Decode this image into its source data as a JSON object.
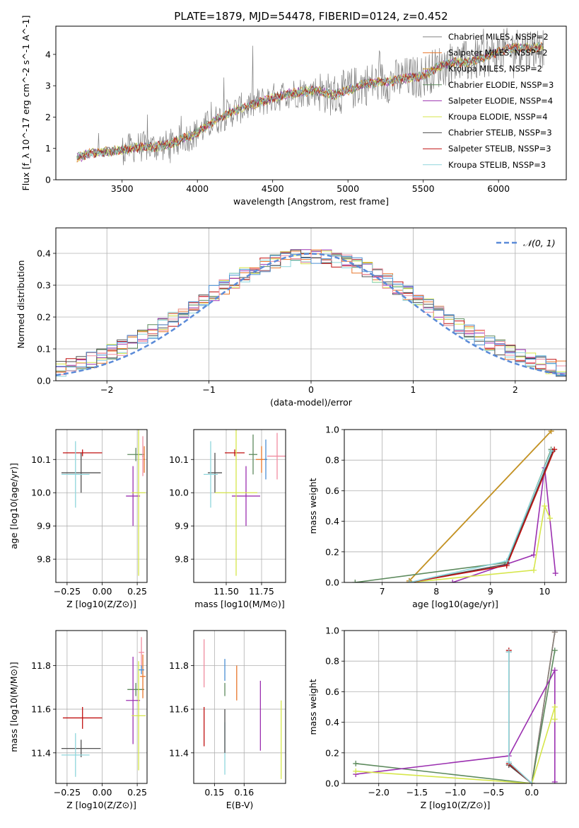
{
  "figure": {
    "title": "PLATE=1879, MJD=54478, FIBERID=0124, z=0.452"
  },
  "chart_data": [
    {
      "id": "spectrum",
      "type": "line",
      "xlabel": "wavelength [Angstrom, rest frame]",
      "ylabel": "Flux [f_λ 10^-17 erg cm^-2 s^-1 A^-1]",
      "xlim": [
        3060,
        6450
      ],
      "ylim": [
        0,
        4.9
      ],
      "xticks": [
        3500,
        4000,
        4500,
        5000,
        5500,
        6000
      ],
      "yticks": [
        0,
        1,
        2,
        3,
        4
      ],
      "grid": false,
      "legend_position": "upper-right",
      "legend_entries": [
        "Chabrier MILES, N_SSP=2",
        "Salpeter MILES, N_SSP=2",
        "Kroupa MILES, N_SSP=2",
        "Chabrier ELODIE, N_SSP=3",
        "Salpeter ELODIE, N_SSP=4",
        "Kroupa ELODIE, N_SSP=4",
        "Chabrier STELIB, N_SSP=3",
        "Salpeter STELIB, N_SSP=3",
        "Kroupa STELIB, N_SSP=3"
      ],
      "legend_colors": [
        "#808080",
        "#e8762b",
        "#c8961e",
        "#5d8a5d",
        "#9b30b0",
        "#d6e64a",
        "#505050",
        "#c01010",
        "#8fd6dc"
      ],
      "data_model": {
        "x": [
          3200,
          3300,
          3400,
          3500,
          3600,
          3700,
          3800,
          3900,
          4000,
          4100,
          4200,
          4300,
          4400,
          4500,
          4600,
          4700,
          4800,
          4900,
          5000,
          5100,
          5200,
          5300,
          5400,
          5500,
          5600,
          5700,
          5800,
          5900,
          6000,
          6100,
          6200,
          6300
        ],
        "y": [
          0.7,
          0.85,
          0.9,
          0.95,
          1.05,
          1.05,
          1.1,
          1.3,
          1.5,
          1.85,
          2.1,
          2.3,
          2.45,
          2.6,
          2.75,
          2.8,
          2.85,
          2.7,
          2.85,
          3.05,
          3.1,
          3.15,
          3.25,
          3.3,
          3.6,
          3.75,
          3.75,
          3.9,
          4.1,
          4.2,
          4.2,
          4.25
        ]
      }
    },
    {
      "id": "residuals",
      "type": "line",
      "xlabel": "(data-model)/error",
      "ylabel": "Normed distribution",
      "xlim": [
        -2.5,
        2.5
      ],
      "ylim": [
        0,
        0.48
      ],
      "xticks": [
        -2,
        -1,
        0,
        1,
        2
      ],
      "yticks": [
        0.0,
        0.1,
        0.2,
        0.3,
        0.4
      ],
      "grid": true,
      "legend_position": "upper-right",
      "legend_entries": [
        "𝒩(0, 1)"
      ],
      "gaussian_mean": 0,
      "gaussian_sigma": 1,
      "bin_width": 0.1
    },
    {
      "id": "age-vs-Z",
      "type": "scatter",
      "xlabel": "Z [log10(Z/Z⊙)]",
      "ylabel": "age  [log10(age/yr)]",
      "xlim": [
        -0.33,
        0.32
      ],
      "ylim": [
        9.73,
        10.19
      ],
      "xticks": [
        -0.25,
        0.0,
        0.25
      ],
      "yticks": [
        9.8,
        9.9,
        10.0,
        10.1
      ],
      "grid": true,
      "points": [
        {
          "color": "#c01010",
          "x": -0.14,
          "xe": 0.14,
          "y": 10.12,
          "ye": 0.01
        },
        {
          "color": "#505050",
          "x": -0.15,
          "xe": 0.14,
          "y": 10.06,
          "ye": 0.06
        },
        {
          "color": "#8fd6dc",
          "x": -0.19,
          "xe": 0.1,
          "y": 10.055,
          "ye": 0.1
        },
        {
          "color": "#5d8a5d",
          "x": 0.24,
          "xe": 0.06,
          "y": 10.115,
          "ye": 0.02
        },
        {
          "color": "#e8762b",
          "x": 0.3,
          "xe": 0.005,
          "y": 10.1,
          "ye": 0.04
        },
        {
          "color": "#f08ca0",
          "x": 0.29,
          "xe": 0.005,
          "y": 10.11,
          "ye": 0.06
        },
        {
          "color": "#9b30b0",
          "x": 0.22,
          "xe": 0.05,
          "y": 9.99,
          "ye": 0.09
        },
        {
          "color": "#d6e64a",
          "x": 0.26,
          "xe": 0.05,
          "y": 10.0,
          "ye": 0.25
        }
      ]
    },
    {
      "id": "age-vs-mass",
      "type": "scatter",
      "xlabel": "mass [log10(M/M⊙)]",
      "ylabel": "",
      "xlim": [
        11.27,
        11.92
      ],
      "ylim": [
        9.73,
        10.19
      ],
      "xticks": [
        11.5,
        11.75
      ],
      "yticks": [
        9.8,
        9.9,
        10.0,
        10.1
      ],
      "grid": true,
      "points": [
        {
          "color": "#c01010",
          "x": 11.56,
          "xe": 0.07,
          "y": 10.12,
          "ye": 0.01
        },
        {
          "color": "#505050",
          "x": 11.42,
          "xe": 0.05,
          "y": 10.06,
          "ye": 0.06
        },
        {
          "color": "#8fd6dc",
          "x": 11.39,
          "xe": 0.05,
          "y": 10.055,
          "ye": 0.1
        },
        {
          "color": "#5d8a5d",
          "x": 11.69,
          "xe": 0.03,
          "y": 10.115,
          "ye": 0.06
        },
        {
          "color": "#e8762b",
          "x": 11.75,
          "xe": 0.04,
          "y": 10.1,
          "ye": 0.04
        },
        {
          "color": "#f08ca0",
          "x": 11.86,
          "xe": 0.07,
          "y": 10.11,
          "ye": 0.07
        },
        {
          "color": "#9b30b0",
          "x": 11.64,
          "xe": 0.1,
          "y": 9.99,
          "ye": 0.09
        },
        {
          "color": "#d6e64a",
          "x": 11.57,
          "xe": 0.15,
          "y": 10.0,
          "ye": 0.25
        },
        {
          "color": "#4a8fd4",
          "x": 11.78,
          "xe": 0.01,
          "y": 10.1,
          "ye": 0.06
        }
      ]
    },
    {
      "id": "mass-weight-vs-age",
      "type": "line",
      "xlabel": "age  [log10(age/yr)]",
      "ylabel": "mass weight",
      "xlim": [
        6.3,
        10.4
      ],
      "ylim": [
        0,
        1.0
      ],
      "xticks": [
        7,
        8,
        9,
        10
      ],
      "yticks": [
        0.0,
        0.2,
        0.4,
        0.6,
        0.8,
        1.0
      ],
      "grid": true,
      "series": [
        {
          "color": "#e8762b",
          "x": [
            7.5,
            10.12
          ],
          "y": [
            0.01,
            0.99
          ]
        },
        {
          "color": "#808080",
          "x": [
            7.5,
            10.12
          ],
          "y": [
            0.01,
            0.99
          ]
        },
        {
          "color": "#c8961e",
          "x": [
            7.5,
            10.12
          ],
          "y": [
            0.01,
            0.99
          ]
        },
        {
          "color": "#5d8a5d",
          "x": [
            6.5,
            9.3,
            10.12
          ],
          "y": [
            0.0,
            0.13,
            0.87
          ]
        },
        {
          "color": "#9b30b0",
          "x": [
            8.3,
            9.8,
            10.0,
            10.2
          ],
          "y": [
            0.0,
            0.18,
            0.75,
            0.06
          ]
        },
        {
          "color": "#d6e64a",
          "x": [
            7.5,
            9.8,
            10.0,
            10.1
          ],
          "y": [
            0.0,
            0.08,
            0.5,
            0.42
          ]
        },
        {
          "color": "#505050",
          "x": [
            7.5,
            9.3,
            10.15
          ],
          "y": [
            0.0,
            0.12,
            0.86
          ]
        },
        {
          "color": "#c01010",
          "x": [
            7.5,
            9.3,
            10.18
          ],
          "y": [
            0.0,
            0.11,
            0.87
          ]
        },
        {
          "color": "#8fd6dc",
          "x": [
            7.5,
            9.3,
            10.12
          ],
          "y": [
            0.0,
            0.14,
            0.86
          ]
        }
      ]
    },
    {
      "id": "mass-vs-Z",
      "type": "scatter",
      "xlabel": "Z [log10(Z/Z⊙)]",
      "ylabel": "mass [log10(M/M⊙)]",
      "xlim": [
        -0.33,
        0.32
      ],
      "ylim": [
        11.26,
        11.96
      ],
      "xticks": [
        -0.25,
        0.0,
        0.25
      ],
      "yticks": [
        11.4,
        11.6,
        11.8
      ],
      "grid": true,
      "points": [
        {
          "color": "#c01010",
          "x": -0.14,
          "xe": 0.14,
          "y": 11.56,
          "ye": 0.05
        },
        {
          "color": "#505050",
          "x": -0.15,
          "xe": 0.14,
          "y": 11.42,
          "ye": 0.04
        },
        {
          "color": "#8fd6dc",
          "x": -0.19,
          "xe": 0.1,
          "y": 11.39,
          "ye": 0.1
        },
        {
          "color": "#5d8a5d",
          "x": 0.24,
          "xe": 0.06,
          "y": 11.69,
          "ye": 0.03
        },
        {
          "color": "#e8762b",
          "x": 0.29,
          "xe": 0.02,
          "y": 11.75,
          "ye": 0.1
        },
        {
          "color": "#f08ca0",
          "x": 0.28,
          "xe": 0.02,
          "y": 11.86,
          "ye": 0.07
        },
        {
          "color": "#9b30b0",
          "x": 0.22,
          "xe": 0.05,
          "y": 11.64,
          "ye": 0.2
        },
        {
          "color": "#d6e64a",
          "x": 0.26,
          "xe": 0.05,
          "y": 11.57,
          "ye": 0.25
        },
        {
          "color": "#4a8fd4",
          "x": 0.28,
          "xe": 0.02,
          "y": 11.78,
          "ye": 0.02
        }
      ]
    },
    {
      "id": "mass-vs-ebv",
      "type": "scatter",
      "xlabel": "E(B-V)",
      "ylabel": "",
      "xlim": [
        0.143,
        0.174
      ],
      "ylim": [
        11.26,
        11.96
      ],
      "xticks": [
        0.15,
        0.16
      ],
      "yticks": [
        11.4,
        11.6,
        11.8
      ],
      "grid": true,
      "points": [
        {
          "color": "#f08ca0",
          "x": 0.1465,
          "y": 11.81,
          "ye": 0.11
        },
        {
          "color": "#c01010",
          "x": 0.1465,
          "y": 11.52,
          "ye": 0.09
        },
        {
          "color": "#5d8a5d",
          "x": 0.1535,
          "y": 11.69,
          "ye": 0.03
        },
        {
          "color": "#4a8fd4",
          "x": 0.1535,
          "y": 11.78,
          "ye": 0.05
        },
        {
          "color": "#8fd6dc",
          "x": 0.1535,
          "y": 11.42,
          "ye": 0.12
        },
        {
          "color": "#505050",
          "x": 0.1535,
          "y": 11.5,
          "ye": 0.1
        },
        {
          "color": "#e8762b",
          "x": 0.1575,
          "y": 11.72,
          "ye": 0.08
        },
        {
          "color": "#9b30b0",
          "x": 0.1655,
          "y": 11.57,
          "ye": 0.16
        },
        {
          "color": "#d6e64a",
          "x": 0.1725,
          "y": 11.46,
          "ye": 0.18
        }
      ]
    },
    {
      "id": "mass-weight-vs-Z",
      "type": "line",
      "xlabel": "Z [log10(Z/Z⊙)]",
      "ylabel": "mass weight",
      "xlim": [
        -2.45,
        0.45
      ],
      "ylim": [
        0,
        1.0
      ],
      "xticks": [
        -2.0,
        -1.5,
        -1.0,
        -0.5,
        0.0
      ],
      "xticklabels": [
        "−2.0",
        "−1.5",
        "−1.0",
        "−0.5",
        "0.0"
      ],
      "yticks": [
        0.0,
        0.2,
        0.4,
        0.6,
        0.8,
        1.0
      ],
      "grid": true,
      "series": [
        {
          "color": "#e8762b",
          "x": [
            0.0,
            0.3
          ],
          "y": [
            0.0,
            0.99
          ]
        },
        {
          "color": "#808080",
          "x": [
            0.0,
            0.3
          ],
          "y": [
            0.0,
            0.99
          ]
        },
        {
          "color": "#5d8a5d",
          "x": [
            -2.3,
            0.0,
            0.3
          ],
          "y": [
            0.13,
            0.0,
            0.87
          ]
        },
        {
          "color": "#9b30b0",
          "x": [
            -2.3,
            -0.3,
            0.3,
            0.3
          ],
          "y": [
            0.06,
            0.18,
            0.74,
            0.01
          ]
        },
        {
          "color": "#d6e64a",
          "x": [
            -2.3,
            0.0,
            0.3,
            0.3
          ],
          "y": [
            0.08,
            0.0,
            0.5,
            0.42
          ]
        },
        {
          "color": "#505050",
          "x": [
            -0.3,
            -0.3,
            0.0
          ],
          "y": [
            0.86,
            0.12,
            0.0
          ]
        },
        {
          "color": "#c01010",
          "x": [
            -0.3,
            -0.3,
            0.0
          ],
          "y": [
            0.87,
            0.13,
            0.0
          ]
        },
        {
          "color": "#8fd6dc",
          "x": [
            -0.3,
            -0.3,
            0.0
          ],
          "y": [
            0.86,
            0.14,
            0.0
          ]
        }
      ]
    }
  ]
}
